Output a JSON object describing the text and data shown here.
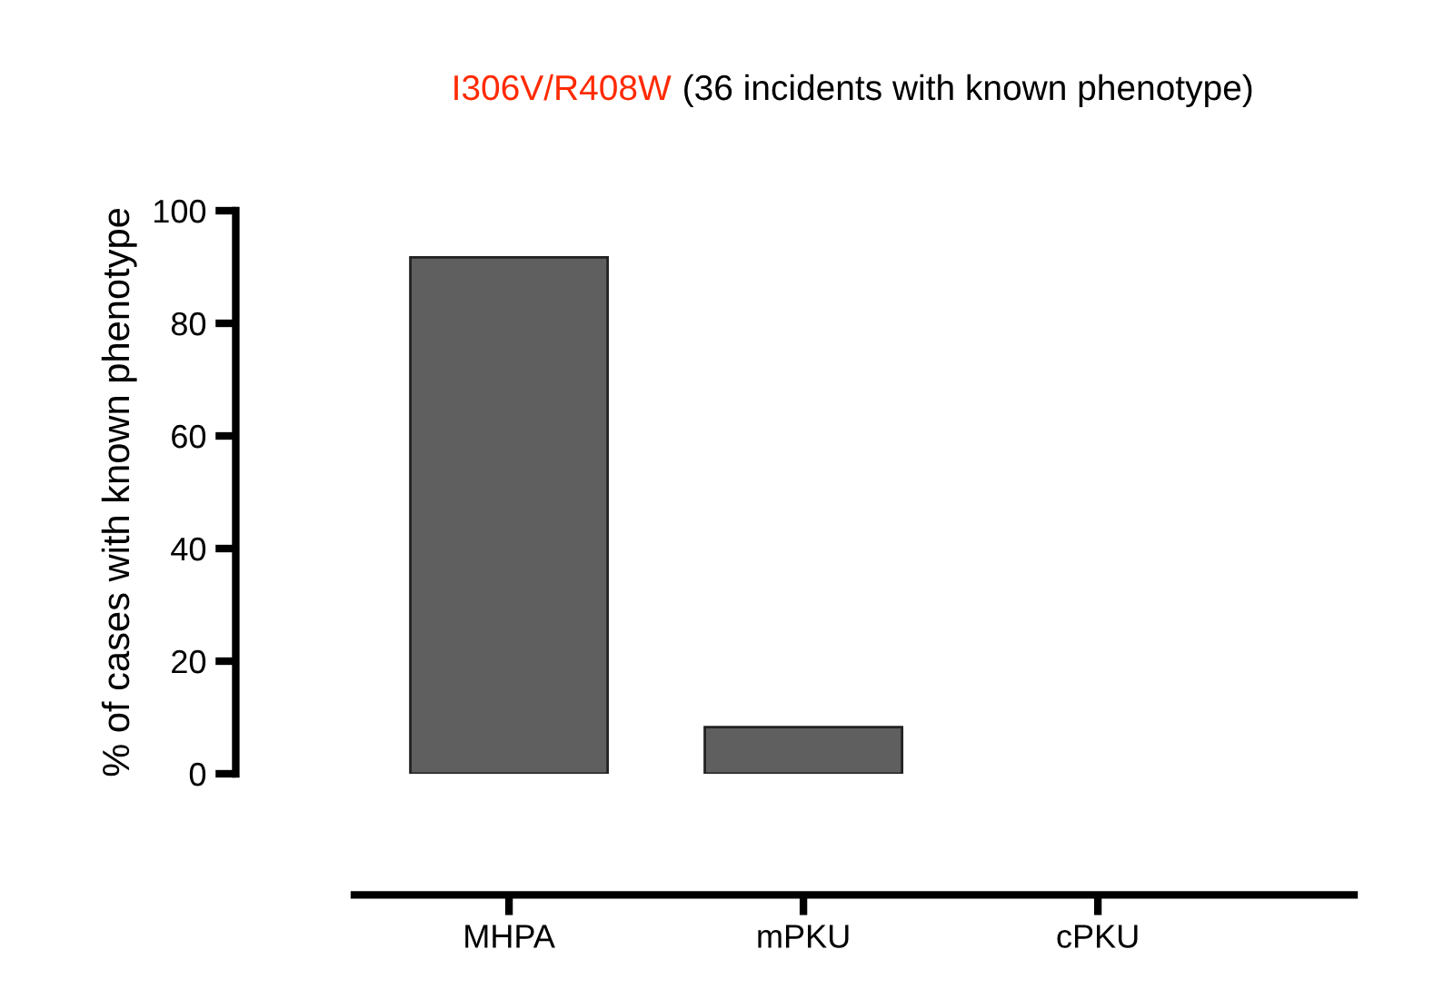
{
  "chart_data": {
    "type": "bar",
    "title": "I306V/R408W (36 incidents with known phenotype)",
    "ylabel": "% of cases with known phenotype",
    "categories": [
      "MHPA",
      "mPKU",
      "cPKU"
    ],
    "values": [
      91.7,
      8.3,
      0
    ],
    "color": "#5f5f5f",
    "ylim": [
      0,
      100
    ],
    "yticks": [
      0,
      20,
      40,
      60,
      80,
      100
    ],
    "grid": false,
    "legend": false
  }
}
